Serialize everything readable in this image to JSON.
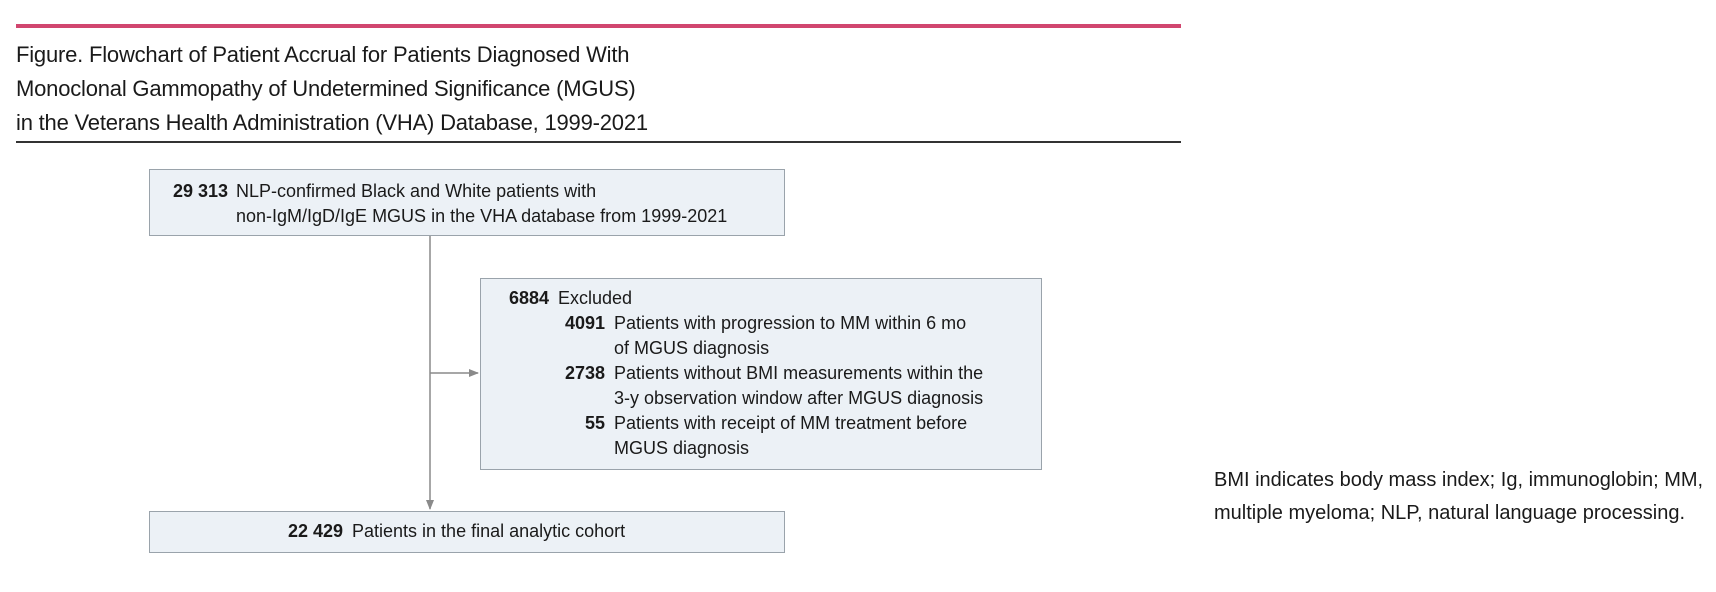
{
  "figure": {
    "title_lines": [
      "Figure. Flowchart of Patient Accrual for Patients Diagnosed With",
      "Monoclonal Gammopathy of Undetermined Significance (MGUS)",
      "in the Veterans Health Administration (VHA) Database, 1999-2021"
    ]
  },
  "flowchart": {
    "start": {
      "count": "29 313",
      "text_lines": [
        "NLP-confirmed Black and White patients with",
        "non-IgM/IgD/IgE MGUS in the VHA database from 1999-2021"
      ]
    },
    "excluded": {
      "count": "6884",
      "label": "Excluded",
      "reasons": [
        {
          "count": "4091",
          "text_lines": [
            "Patients with progression to MM within 6 mo",
            "of MGUS diagnosis"
          ]
        },
        {
          "count": "2738",
          "text_lines": [
            "Patients without BMI measurements within the",
            "3-y observation window after MGUS diagnosis"
          ]
        },
        {
          "count": "55",
          "text_lines": [
            "Patients with receipt of MM treatment before",
            "MGUS diagnosis"
          ]
        }
      ]
    },
    "final": {
      "count": "22 429",
      "text": "Patients in the final analytic cohort"
    }
  },
  "footnote": "BMI indicates body mass index; Ig, immunoglobin; MM, multiple myeloma; NLP, natural language processing.",
  "colors": {
    "accent_rule": "#d1466f",
    "box_fill": "#ecf1f6",
    "box_border": "#9aa3ab",
    "connector": "#8a8a8a"
  }
}
